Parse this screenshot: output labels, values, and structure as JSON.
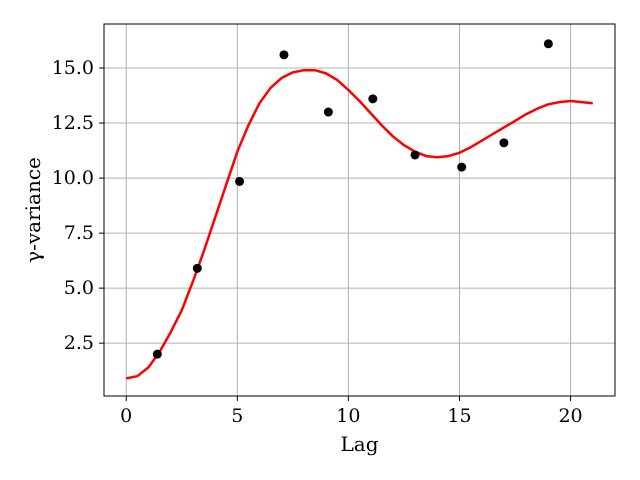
{
  "chart_data": {
    "type": "scatter",
    "xlabel": "Lag",
    "ylabel": "γ-variance",
    "xlim": [
      -1,
      22
    ],
    "ylim": [
      0.1,
      17.0
    ],
    "x_ticks": [
      0,
      5,
      10,
      15,
      20
    ],
    "y_ticks": [
      2.5,
      5.0,
      7.5,
      10.0,
      12.5,
      15.0
    ],
    "x_tick_labels": [
      "0",
      "5",
      "10",
      "15",
      "20"
    ],
    "y_tick_labels": [
      "2.5",
      "5.0",
      "7.5",
      "10.0",
      "12.5",
      "15.0"
    ],
    "grid": true,
    "series": [
      {
        "kind": "points",
        "color": "#000000",
        "x": [
          1.4,
          3.2,
          5.1,
          7.1,
          9.1,
          11.1,
          13.0,
          15.1,
          17.0,
          19.0
        ],
        "y": [
          2.0,
          5.9,
          9.85,
          15.6,
          13.0,
          13.6,
          11.05,
          10.5,
          11.6,
          16.1
        ]
      },
      {
        "kind": "line",
        "color": "#ff0000",
        "x": [
          0,
          0.5,
          1,
          1.5,
          2,
          2.5,
          3,
          3.5,
          4,
          4.5,
          5,
          5.5,
          6,
          6.5,
          7,
          7.5,
          8,
          8.5,
          9,
          9.5,
          10,
          10.5,
          11,
          11.5,
          12,
          12.5,
          13,
          13.5,
          14,
          14.5,
          15,
          15.5,
          16,
          16.5,
          17,
          17.5,
          18,
          18.5,
          19,
          19.5,
          20,
          20.5,
          21
        ],
        "y": [
          0.9,
          1.0,
          1.4,
          2.1,
          3.0,
          4.0,
          5.3,
          6.7,
          8.2,
          9.7,
          11.2,
          12.4,
          13.4,
          14.1,
          14.55,
          14.8,
          14.9,
          14.9,
          14.75,
          14.45,
          14.0,
          13.5,
          12.95,
          12.4,
          11.9,
          11.5,
          11.2,
          11.0,
          10.95,
          11.0,
          11.15,
          11.4,
          11.7,
          12.0,
          12.3,
          12.6,
          12.9,
          13.15,
          13.35,
          13.45,
          13.5,
          13.45,
          13.4
        ]
      }
    ]
  }
}
